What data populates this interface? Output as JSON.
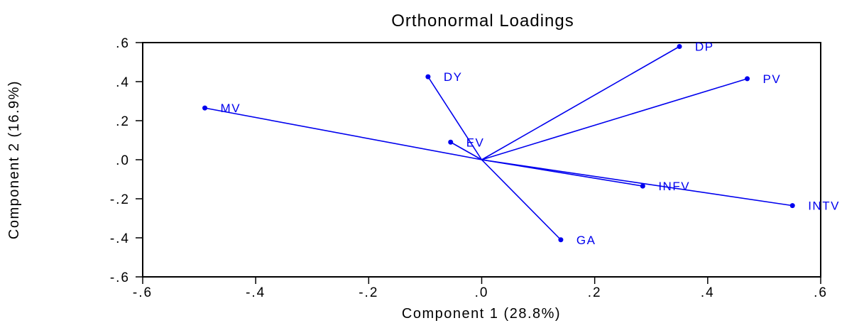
{
  "chart_data": {
    "type": "scatter",
    "title": "Orthonormal Loadings",
    "xlabel": "Component 1 (28.8%)",
    "ylabel": "Component 2 (16.9%)",
    "xlim": [
      -0.6,
      0.6
    ],
    "ylim": [
      -0.6,
      0.6
    ],
    "x_ticks": [
      -0.6,
      -0.4,
      -0.2,
      0.0,
      0.2,
      0.4,
      0.6
    ],
    "y_ticks": [
      -0.6,
      -0.4,
      -0.2,
      0.0,
      0.2,
      0.4,
      0.6
    ],
    "x_tick_labels": [
      "-.6",
      "-.4",
      "-.2",
      ".0",
      ".2",
      ".4",
      ".6"
    ],
    "y_tick_labels": [
      "-.6",
      "-.4",
      "-.2",
      ".0",
      ".2",
      ".4",
      ".6"
    ],
    "grid": false,
    "series_color": "#0000ee",
    "points": [
      {
        "label": "DP",
        "x": 0.35,
        "y": 0.58
      },
      {
        "label": "PV",
        "x": 0.47,
        "y": 0.415
      },
      {
        "label": "DY",
        "x": -0.095,
        "y": 0.425
      },
      {
        "label": "MV",
        "x": -0.49,
        "y": 0.265
      },
      {
        "label": "EV",
        "x": -0.055,
        "y": 0.09
      },
      {
        "label": "INFV",
        "x": 0.285,
        "y": -0.135
      },
      {
        "label": "INTV",
        "x": 0.55,
        "y": -0.235
      },
      {
        "label": "GA",
        "x": 0.14,
        "y": -0.41
      }
    ]
  }
}
